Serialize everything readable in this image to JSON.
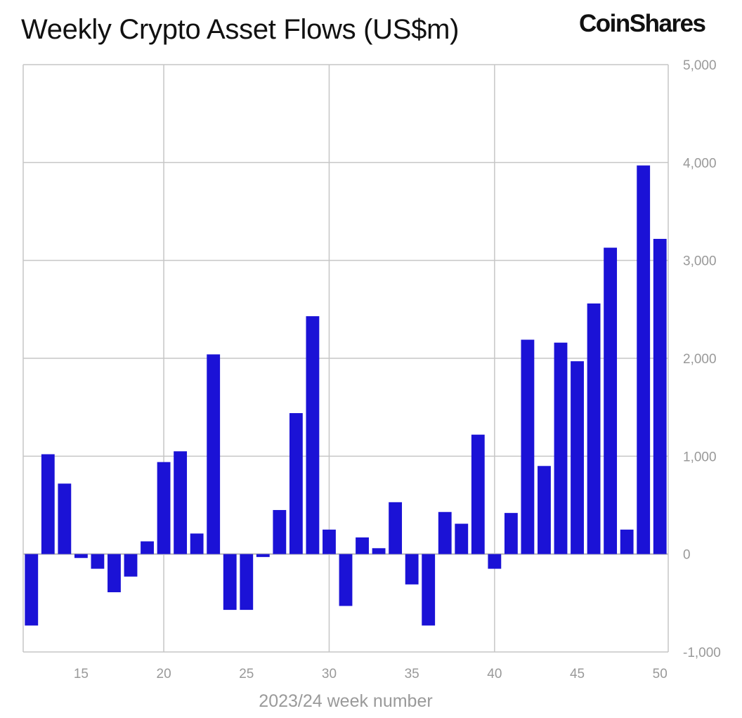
{
  "brand": {
    "logo_text": "CoinShares"
  },
  "chart_data": {
    "type": "bar",
    "title": "Weekly Crypto Asset Flows (US$m)",
    "xlabel": "2023/24 week number",
    "ylabel": "",
    "grid": true,
    "bar_color": "#1b12d6",
    "x_ticks": [
      15,
      20,
      25,
      30,
      35,
      40,
      45,
      50
    ],
    "y_ticks": [
      -1000,
      0,
      1000,
      2000,
      3000,
      4000,
      5000
    ],
    "y_tick_labels": [
      "-1,000",
      "0",
      "1,000",
      "2,000",
      "3,000",
      "4,000",
      "5,000"
    ],
    "ylim": [
      -1000,
      5000
    ],
    "xlim": [
      11.5,
      50.5
    ],
    "categories": [
      12,
      13,
      14,
      15,
      16,
      17,
      18,
      19,
      20,
      21,
      22,
      23,
      24,
      25,
      26,
      27,
      28,
      29,
      30,
      31,
      32,
      33,
      34,
      35,
      36,
      37,
      38,
      39,
      40,
      41,
      42,
      43,
      44,
      45,
      46,
      47,
      48,
      49,
      50
    ],
    "values": [
      -730,
      1020,
      720,
      -40,
      -150,
      -390,
      -230,
      130,
      940,
      1050,
      210,
      2040,
      -570,
      -570,
      -30,
      450,
      1440,
      2430,
      250,
      -530,
      170,
      60,
      530,
      -310,
      -730,
      430,
      310,
      1220,
      -150,
      420,
      2190,
      900,
      2160,
      1970,
      2560,
      3130,
      250,
      3970,
      3220
    ]
  }
}
